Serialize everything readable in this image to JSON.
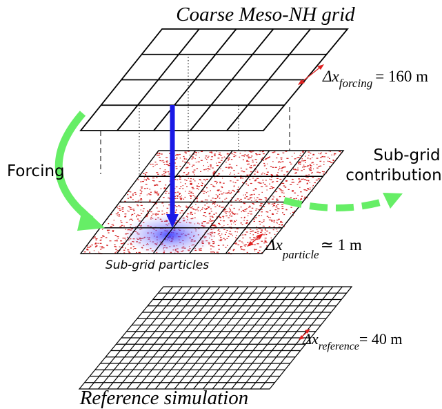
{
  "titles": {
    "coarse_grid": "Coarse Meso-NH grid",
    "sub_grid_particles": "Sub-grid particles",
    "reference_simulation": "Reference simulation"
  },
  "arrows": {
    "forcing": "Forcing",
    "contribution_line1": "Sub-grid",
    "contribution_line2": "contribution"
  },
  "resolutions": {
    "forcing": {
      "symbol": "Δx",
      "subscript": "forcing",
      "value": "= 160 m"
    },
    "particle": {
      "symbol": "Δx",
      "subscript": "particle",
      "value": "≃ 1 m"
    },
    "reference": {
      "symbol": "Δx",
      "subscript": "reference",
      "value": "= 40 m"
    }
  },
  "colors": {
    "grid_lines": "#000000",
    "particles": "#d42020",
    "forcing_arrow": "#1a1ae6",
    "green_arrows": "#66ee66",
    "resolution_marker": "#e02020",
    "blob": "#3a3aff"
  }
}
